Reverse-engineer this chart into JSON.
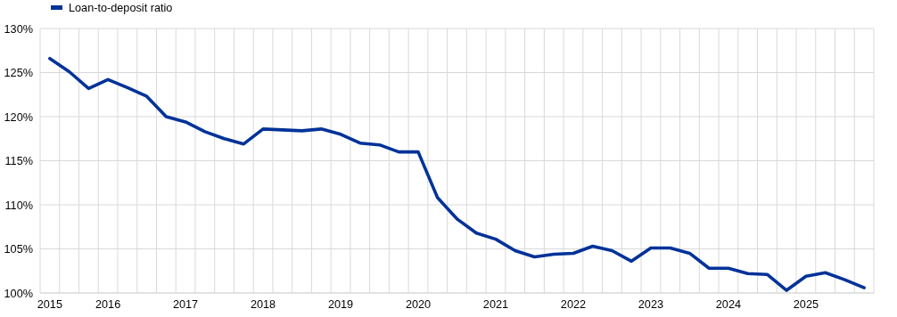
{
  "chart_data": {
    "type": "line",
    "categories": [
      "2015",
      null,
      null,
      "2016",
      null,
      null,
      null,
      "2017",
      null,
      null,
      null,
      "2018",
      null,
      null,
      null,
      "2019",
      null,
      null,
      null,
      "2020",
      null,
      null,
      null,
      "2021",
      null,
      null,
      null,
      "2022",
      null,
      null,
      null,
      "2023",
      null,
      null,
      null,
      "2024",
      null,
      null,
      null,
      "2025",
      null,
      null,
      null
    ],
    "series": [
      {
        "name": "Loan-to-deposit ratio",
        "color": "#003299",
        "values": [
          126.6,
          125.1,
          123.2,
          124.2,
          123.3,
          122.3,
          120.0,
          119.4,
          118.3,
          117.5,
          116.9,
          118.6,
          118.5,
          118.4,
          118.6,
          118.0,
          117.0,
          116.8,
          116.0,
          116.0,
          110.8,
          108.4,
          106.8,
          106.1,
          104.8,
          104.1,
          104.4,
          104.5,
          105.3,
          104.8,
          103.6,
          105.1,
          105.1,
          104.5,
          102.8,
          102.8,
          102.2,
          102.1,
          100.3,
          101.9,
          102.3,
          101.5,
          100.6
        ]
      }
    ],
    "ylim": [
      100,
      130
    ],
    "yticks": [
      {
        "value": 100,
        "label": "100%"
      },
      {
        "value": 105,
        "label": "105%"
      },
      {
        "value": 110,
        "label": "110%"
      },
      {
        "value": 115,
        "label": "115%"
      },
      {
        "value": 120,
        "label": "120%"
      },
      {
        "value": 125,
        "label": "125%"
      },
      {
        "value": 130,
        "label": "130%"
      }
    ],
    "grid": true,
    "legend": "top left",
    "marker": "none"
  }
}
